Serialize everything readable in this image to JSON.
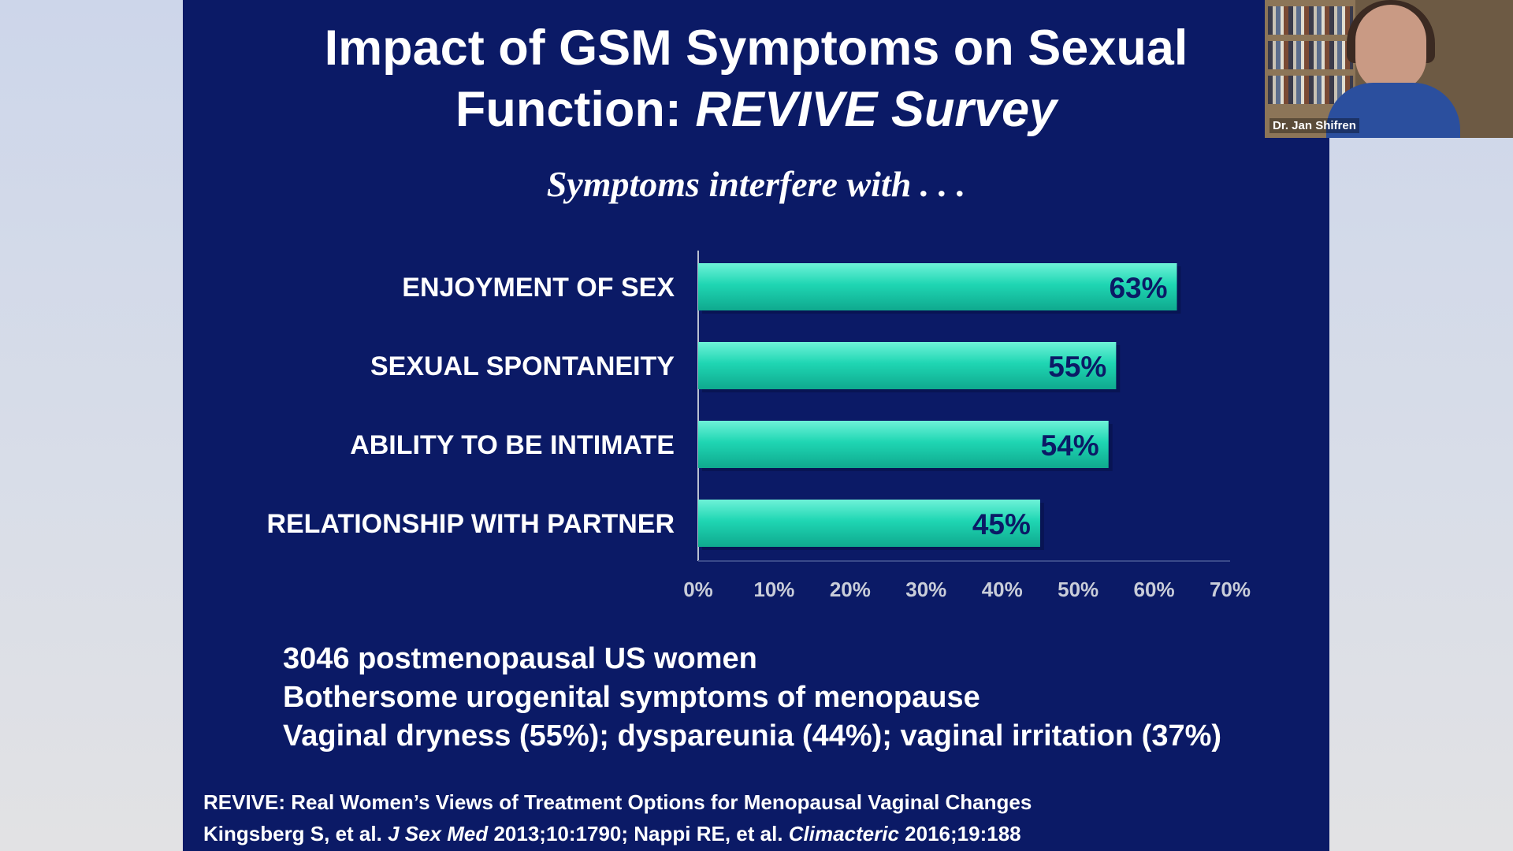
{
  "slide": {
    "title_line1": "Impact of GSM Symptoms on Sexual",
    "title_line2_plain": "Function: ",
    "title_line2_italic": "REVIVE Survey",
    "subtitle": "Symptoms interfere with . . .",
    "notes": [
      "3046 postmenopausal US women",
      "Bothersome urogenital symptoms of menopause",
      "Vaginal dryness (55%); dyspareunia (44%); vaginal irritation (37%)"
    ],
    "ref_line1": "REVIVE: Real Women’s Views of Treatment Options for Menopausal Vaginal Changes",
    "ref_line2_a": "Kingsberg S, et al. ",
    "ref_line2_b": "J Sex Med",
    "ref_line2_c": " 2013;10:1790; Nappi RE, et al. ",
    "ref_line2_d": "Climacteric",
    "ref_line2_e": " 2016;19:188"
  },
  "video": {
    "speaker_name": "Dr. Jan Shifren"
  },
  "colors": {
    "slide_background": "#0b1a66",
    "bar_fill": "#19d2b0",
    "value_label": "#0b1a66"
  },
  "chart_data": {
    "type": "bar",
    "orientation": "horizontal",
    "title": "Symptoms interfere with . . .",
    "categories": [
      "ENJOYMENT OF SEX",
      "SEXUAL SPONTANEITY",
      "ABILITY TO BE INTIMATE",
      "RELATIONSHIP WITH PARTNER"
    ],
    "values": [
      63,
      55,
      54,
      45
    ],
    "value_labels": [
      "63%",
      "55%",
      "54%",
      "45%"
    ],
    "xlim": [
      0,
      70
    ],
    "x_ticks": [
      "0%",
      "10%",
      "20%",
      "30%",
      "40%",
      "50%",
      "60%",
      "70%"
    ],
    "grid": false,
    "legend": "none"
  }
}
